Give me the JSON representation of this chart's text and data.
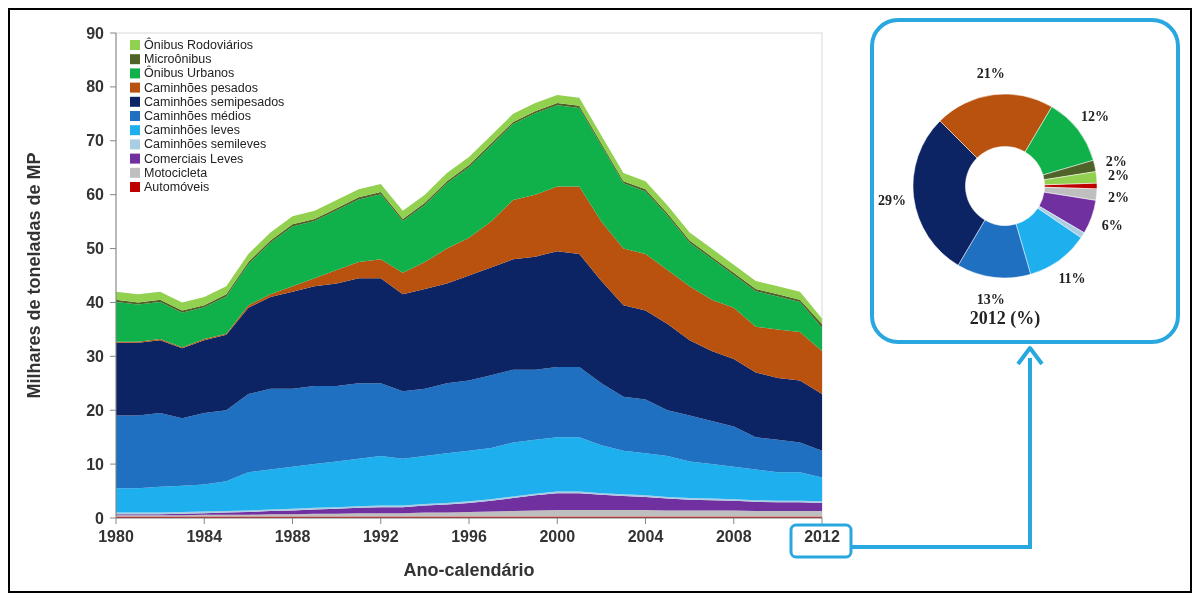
{
  "chart_data": [
    {
      "type": "area",
      "stacked": true,
      "xlabel": "Ano-calendário",
      "ylabel": "Milhares de toneladas de MP",
      "x": [
        1980,
        1981,
        1982,
        1983,
        1984,
        1985,
        1986,
        1987,
        1988,
        1989,
        1990,
        1991,
        1992,
        1993,
        1994,
        1995,
        1996,
        1997,
        1998,
        1999,
        2000,
        2001,
        2002,
        2003,
        2004,
        2005,
        2006,
        2007,
        2008,
        2009,
        2010,
        2011,
        2012
      ],
      "xlim": [
        1980,
        2012
      ],
      "xticks": [
        1980,
        1984,
        1988,
        1992,
        1996,
        2000,
        2004,
        2008,
        2012
      ],
      "ylim": [
        0,
        90
      ],
      "yticks": [
        0,
        10,
        20,
        30,
        40,
        50,
        60,
        70,
        80,
        90
      ],
      "legend": "top left",
      "series": [
        {
          "name": "Automóveis",
          "color": "#c00000",
          "values": [
            0.3,
            0.3,
            0.3,
            0.3,
            0.3,
            0.3,
            0.3,
            0.3,
            0.3,
            0.3,
            0.3,
            0.3,
            0.3,
            0.3,
            0.3,
            0.3,
            0.3,
            0.3,
            0.3,
            0.3,
            0.3,
            0.3,
            0.3,
            0.3,
            0.3,
            0.3,
            0.3,
            0.3,
            0.3,
            0.3,
            0.3,
            0.3,
            0.3
          ]
        },
        {
          "name": "Motocicleta",
          "color": "#bfbfbf",
          "values": [
            0.2,
            0.2,
            0.2,
            0.2,
            0.3,
            0.3,
            0.3,
            0.4,
            0.4,
            0.5,
            0.5,
            0.6,
            0.6,
            0.6,
            0.7,
            0.7,
            0.8,
            0.9,
            1.0,
            1.1,
            1.2,
            1.2,
            1.2,
            1.2,
            1.2,
            1.1,
            1.1,
            1.1,
            1.1,
            1.0,
            1.0,
            1.0,
            1.0
          ]
        },
        {
          "name": "Comerciais Leves",
          "color": "#7030a0",
          "values": [
            0.2,
            0.2,
            0.2,
            0.3,
            0.3,
            0.4,
            0.5,
            0.6,
            0.7,
            0.8,
            0.9,
            1.0,
            1.1,
            1.1,
            1.3,
            1.5,
            1.7,
            2.0,
            2.4,
            2.8,
            3.1,
            3.1,
            2.8,
            2.6,
            2.4,
            2.2,
            2.0,
            1.9,
            1.8,
            1.7,
            1.6,
            1.6,
            1.5
          ]
        },
        {
          "name": "Caminhões semileves",
          "color": "#a9cde3",
          "values": [
            0.3,
            0.3,
            0.3,
            0.3,
            0.3,
            0.3,
            0.3,
            0.3,
            0.3,
            0.3,
            0.3,
            0.3,
            0.3,
            0.3,
            0.3,
            0.3,
            0.3,
            0.3,
            0.3,
            0.3,
            0.3,
            0.3,
            0.3,
            0.3,
            0.3,
            0.3,
            0.3,
            0.3,
            0.3,
            0.3,
            0.3,
            0.3,
            0.3
          ]
        },
        {
          "name": "Caminhões leves",
          "color": "#1eb0ee",
          "values": [
            4.5,
            4.5,
            4.8,
            4.9,
            5.0,
            5.5,
            7.1,
            7.4,
            7.8,
            8.1,
            8.5,
            8.8,
            9.2,
            8.7,
            8.9,
            9.2,
            9.4,
            9.5,
            10.0,
            10.0,
            10.1,
            10.1,
            8.9,
            8.1,
            7.8,
            7.6,
            6.8,
            6.4,
            6.0,
            5.7,
            5.3,
            5.3,
            4.4
          ]
        },
        {
          "name": "Caminhões médios",
          "color": "#1f70c1",
          "values": [
            13.5,
            13.5,
            13.7,
            12.5,
            13.3,
            13.2,
            14.5,
            15,
            14.5,
            14.5,
            14,
            14,
            13.5,
            12.5,
            12.5,
            13,
            13,
            13.5,
            13.5,
            13,
            13,
            13,
            11.5,
            10,
            10,
            8.5,
            8.5,
            8,
            7.5,
            6,
            6,
            5.5,
            5
          ]
        },
        {
          "name": "Caminhões semipesados",
          "color": "#0c2463",
          "values": [
            13.5,
            13.5,
            13.5,
            13,
            13.5,
            14,
            16,
            17,
            18,
            18.5,
            19,
            19.5,
            19.5,
            18,
            18.5,
            18.5,
            19.5,
            20,
            20.5,
            21,
            21.5,
            21,
            19,
            17,
            16.5,
            16,
            14,
            13,
            12.5,
            12,
            11.5,
            11.5,
            10.5
          ]
        },
        {
          "name": "Caminhões pesados",
          "color": "#b9520f",
          "values": [
            0.2,
            0.2,
            0.2,
            0.2,
            0.2,
            0.2,
            0.5,
            0.5,
            1,
            1.5,
            2.5,
            3,
            3.5,
            4,
            5,
            6.5,
            7,
            8.5,
            11,
            11.5,
            12,
            12.5,
            11,
            10.5,
            10.5,
            10,
            10,
            9.5,
            9.5,
            8.5,
            9,
            9,
            8
          ]
        },
        {
          "name": "Ônibus Urbanos",
          "color": "#10b04a",
          "values": [
            7.4,
            6.9,
            6.9,
            6.4,
            5.9,
            6.9,
            7.6,
            9.6,
            11.1,
            10.6,
            11.1,
            11.6,
            12.1,
            9.6,
            10.6,
            12.1,
            13.1,
            14.1,
            14.1,
            15.1,
            15.1,
            14.6,
            14.1,
            12.1,
            11.6,
            10.1,
            8.1,
            7.6,
            6.1,
            6.6,
            6.1,
            5.6,
            4.3
          ]
        },
        {
          "name": "Microônibus",
          "color": "#4f6228",
          "values": [
            0.4,
            0.4,
            0.4,
            0.4,
            0.4,
            0.4,
            0.4,
            0.4,
            0.4,
            0.4,
            0.4,
            0.4,
            0.4,
            0.4,
            0.4,
            0.4,
            0.4,
            0.4,
            0.4,
            0.4,
            0.4,
            0.4,
            0.4,
            0.4,
            0.4,
            0.4,
            0.4,
            0.4,
            0.4,
            0.4,
            0.4,
            0.4,
            0.7
          ]
        },
        {
          "name": "Ônibus Rodoviários",
          "color": "#92d050",
          "values": [
            1.5,
            1.5,
            1.5,
            1.5,
            1.5,
            1.5,
            1.5,
            1.5,
            1.5,
            1.5,
            1.5,
            1.5,
            1.5,
            1.5,
            1.5,
            1.5,
            1.5,
            1.5,
            1.5,
            1.5,
            1.5,
            1.5,
            1.5,
            1.5,
            1.5,
            1.5,
            1.5,
            1.5,
            1.5,
            1.5,
            1.5,
            1.5,
            1.0
          ]
        }
      ]
    },
    {
      "type": "donut",
      "title": "2012 (%)",
      "categories": [
        null,
        null,
        null,
        null,
        null,
        null,
        null,
        null,
        null,
        null,
        null
      ],
      "values": [
        1,
        2,
        6,
        1,
        11,
        13,
        29,
        21,
        12,
        2,
        2
      ],
      "value_labels": [
        null,
        "2%",
        "6%",
        null,
        "11%",
        "13%",
        "29%",
        "21%",
        "12%",
        "2%",
        "2%"
      ],
      "colors": [
        "#c00000",
        "#bfbfbf",
        "#7030a0",
        "#a9cde3",
        "#1eb0ee",
        "#1f70c1",
        "#0c2463",
        "#b9520f",
        "#10b04a",
        "#4f6228",
        "#92d050"
      ]
    }
  ]
}
